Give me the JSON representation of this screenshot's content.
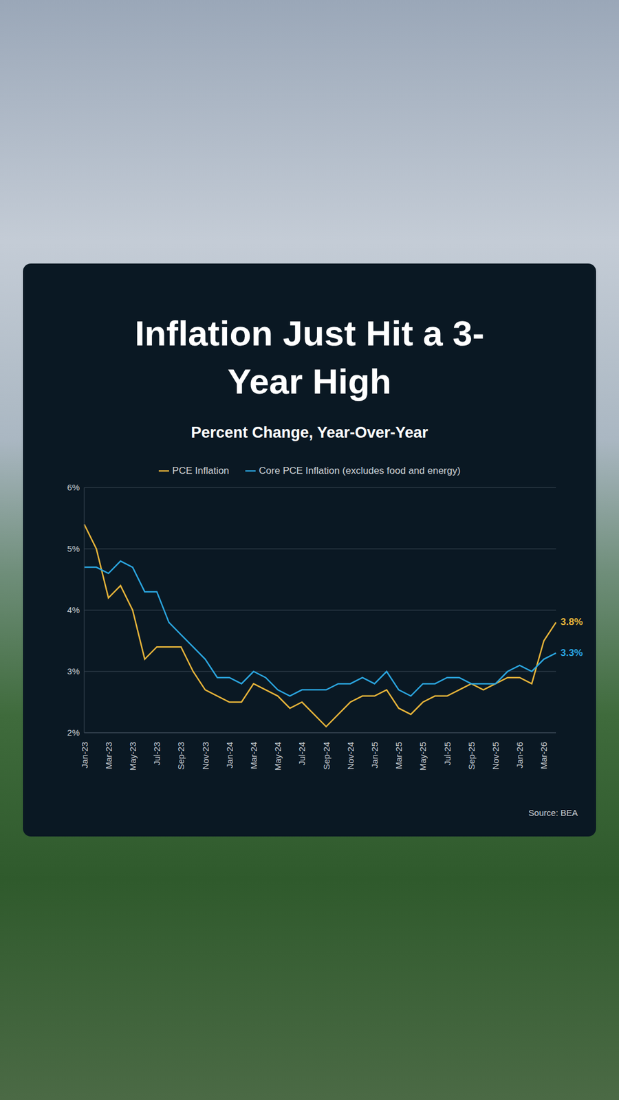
{
  "chart_data": {
    "type": "line",
    "title": "Inflation Just Hit a 3-Year High",
    "subtitle": "Percent Change, Year-Over-Year",
    "source": "Source: BEA",
    "categories": [
      "Jan-23",
      null,
      "Mar-23",
      null,
      "May-23",
      null,
      "Jul-23",
      null,
      "Sep-23",
      null,
      "Nov-23",
      null,
      "Jan-24",
      null,
      "Mar-24",
      null,
      "May-24",
      null,
      "Jul-24",
      null,
      "Sep-24",
      null,
      "Nov-24",
      null,
      "Jan-25",
      null,
      "Mar-25",
      null,
      "May-25",
      null,
      "Jul-25",
      null,
      "Sep-25",
      null,
      "Nov-25",
      null,
      "Jan-26",
      null,
      "Mar-26",
      null
    ],
    "series": [
      {
        "name": "PCE Inflation",
        "color": "#e8b53a",
        "values": [
          5.4,
          5.0,
          4.2,
          4.4,
          4.0,
          3.2,
          3.4,
          3.4,
          3.4,
          3.0,
          2.7,
          2.6,
          2.5,
          2.5,
          2.8,
          2.7,
          2.6,
          2.4,
          2.5,
          2.3,
          2.1,
          2.3,
          2.5,
          2.6,
          2.6,
          2.7,
          2.4,
          2.3,
          2.5,
          2.6,
          2.6,
          2.7,
          2.8,
          2.7,
          2.8,
          2.9,
          2.9,
          2.8,
          3.5,
          3.8
        ]
      },
      {
        "name": "Core PCE Inflation (excludes food and energy)",
        "color": "#2ba6e0",
        "values": [
          4.7,
          4.7,
          4.6,
          4.8,
          4.7,
          4.3,
          4.3,
          3.8,
          3.6,
          3.4,
          3.2,
          2.9,
          2.9,
          2.8,
          3.0,
          2.9,
          2.7,
          2.6,
          2.7,
          2.7,
          2.7,
          2.8,
          2.8,
          2.9,
          2.8,
          3.0,
          2.7,
          2.6,
          2.8,
          2.8,
          2.9,
          2.9,
          2.8,
          2.8,
          2.8,
          3.0,
          3.1,
          3.0,
          3.2,
          3.3
        ]
      }
    ],
    "annotations": [
      {
        "text": "3.8%",
        "series": "PCE Inflation"
      },
      {
        "text": "3.3%",
        "series": "Core PCE Inflation (excludes food and energy)"
      }
    ],
    "ylim": [
      2,
      6
    ],
    "yticks": [
      {
        "value": 2,
        "label": "2%"
      },
      {
        "value": 3,
        "label": "3%"
      },
      {
        "value": 4,
        "label": "4%"
      },
      {
        "value": 5,
        "label": "5%"
      },
      {
        "value": 6,
        "label": "6%"
      }
    ],
    "grid": true,
    "legend": "top"
  }
}
